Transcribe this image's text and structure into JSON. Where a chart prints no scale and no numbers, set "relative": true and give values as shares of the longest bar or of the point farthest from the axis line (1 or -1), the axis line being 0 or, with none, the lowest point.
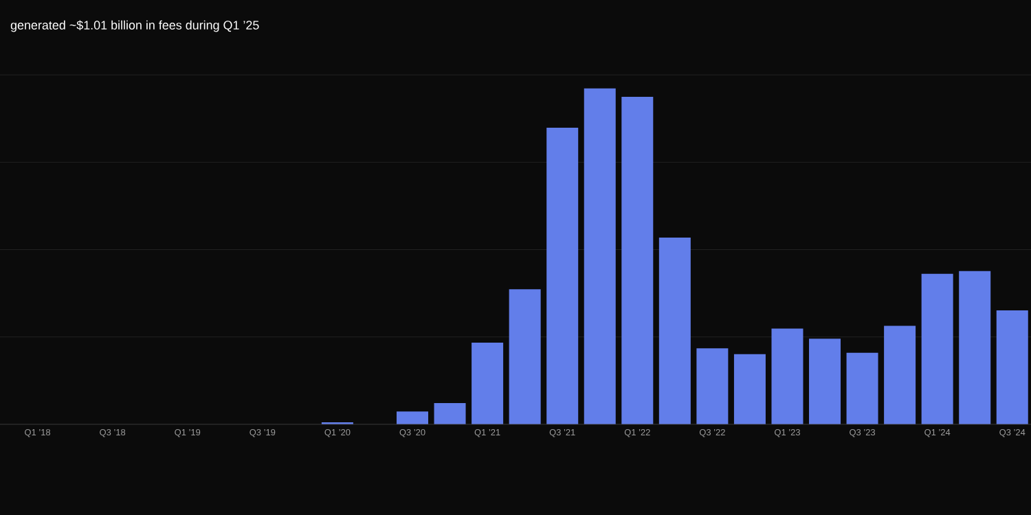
{
  "chart_data": {
    "type": "bar",
    "title": "generated ~$1.01 billion in fees during Q1 ’25",
    "categories": [
      "Q1 ’18",
      null,
      "Q3 ’18",
      null,
      "Q1 ’19",
      null,
      "Q3 ’19",
      null,
      "Q1 ’20",
      null,
      "Q3 ’20",
      null,
      "Q1 ’21",
      null,
      "Q3 ’21",
      null,
      "Q1 ’22",
      null,
      "Q3 ’22",
      null,
      "Q1 ’23",
      null,
      "Q3 ’23",
      null,
      "Q1 ’24",
      null,
      "Q3 ’24"
    ],
    "values": [
      0,
      0,
      0,
      0,
      0,
      0,
      0,
      0,
      0.006,
      0,
      0.038,
      0.063,
      0.243,
      0.402,
      0.883,
      1,
      0.975,
      0.556,
      0.226,
      0.209,
      0.285,
      0.255,
      0.213,
      0.293,
      0.448,
      0.456,
      0.339
    ],
    "color": "#627eea",
    "relative": true,
    "grid": "y"
  }
}
